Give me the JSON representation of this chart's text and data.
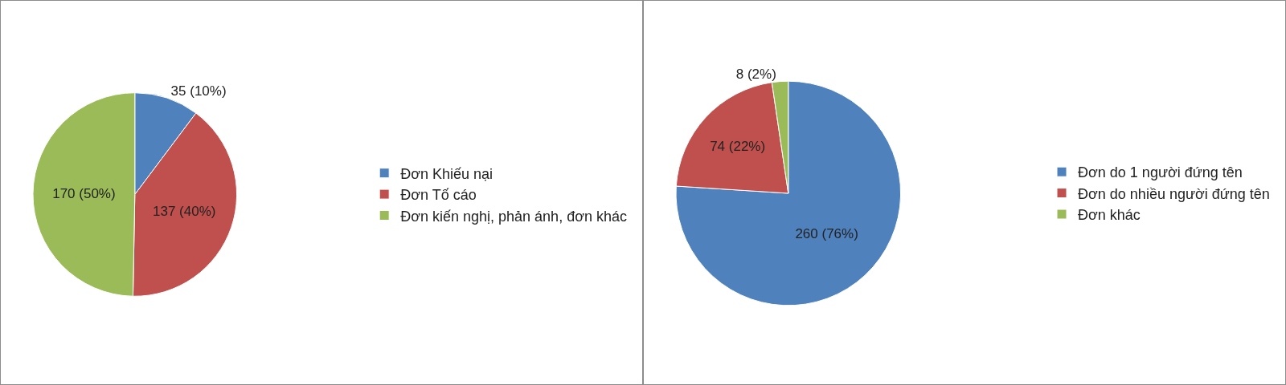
{
  "chart_data": [
    {
      "type": "pie",
      "categories": [
        "Đơn Khiếu nại",
        "Đơn Tố cáo",
        "Đơn kiến nghị, phản ánh, đơn khác"
      ],
      "values": [
        35,
        137,
        170
      ],
      "colors": [
        "#4f81bd",
        "#c0504d",
        "#9bbb59"
      ],
      "value_labels": [
        "35 (10%)",
        "137 (40%)",
        "170 (50%)"
      ],
      "legend": "right"
    },
    {
      "type": "pie",
      "categories": [
        "Đơn do 1 người đứng tên",
        "Đơn do nhiều người đứng tên",
        "Đơn khác"
      ],
      "values": [
        260,
        74,
        8
      ],
      "colors": [
        "#4f81bd",
        "#c0504d",
        "#9bbb59"
      ],
      "value_labels": [
        "260 (76%)",
        "74 (22%)",
        "8 (2%)"
      ],
      "legend": "right"
    }
  ]
}
